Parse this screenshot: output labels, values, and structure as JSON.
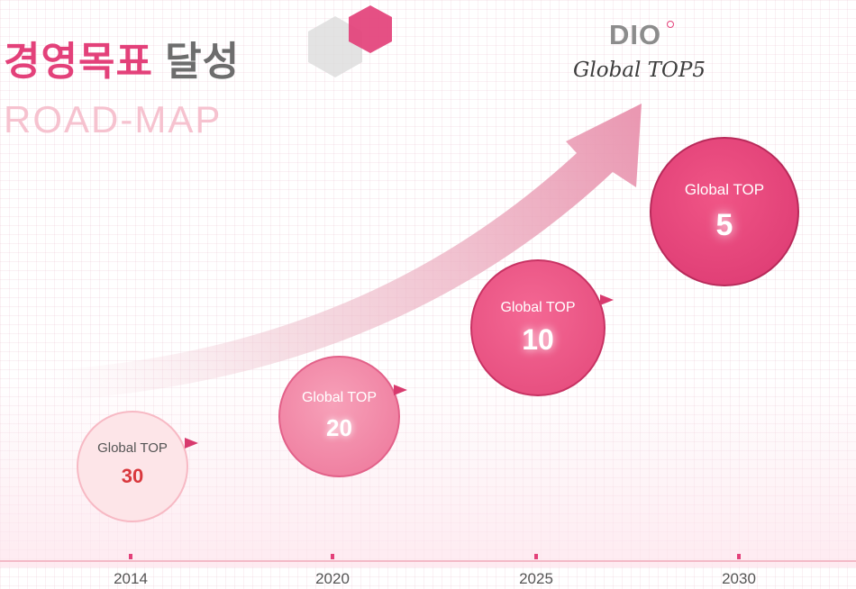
{
  "title": {
    "main_highlight": "경영목표",
    "main_rest": "달성",
    "subtitle": "ROAD-MAP"
  },
  "brand": {
    "logo_text": "DIO",
    "goal": "Global TOP5"
  },
  "colors": {
    "accent": "#e3417a",
    "title_gray": "#6d6d6d",
    "subtitle_pink": "#f6c2cf",
    "axis": "#f3b9c7",
    "pointer": "#d83a6e"
  },
  "milestones": [
    {
      "label": "Global TOP",
      "value": "30",
      "year": "2014"
    },
    {
      "label": "Global TOP",
      "value": "20",
      "year": "2020"
    },
    {
      "label": "Global TOP",
      "value": "10",
      "year": "2025"
    },
    {
      "label": "Global TOP",
      "value": "5",
      "year": "2030"
    }
  ],
  "decor": {
    "hexagon_icon": "hexagon-cluster-icon",
    "growth_arrow": "curved-arrow-icon"
  }
}
